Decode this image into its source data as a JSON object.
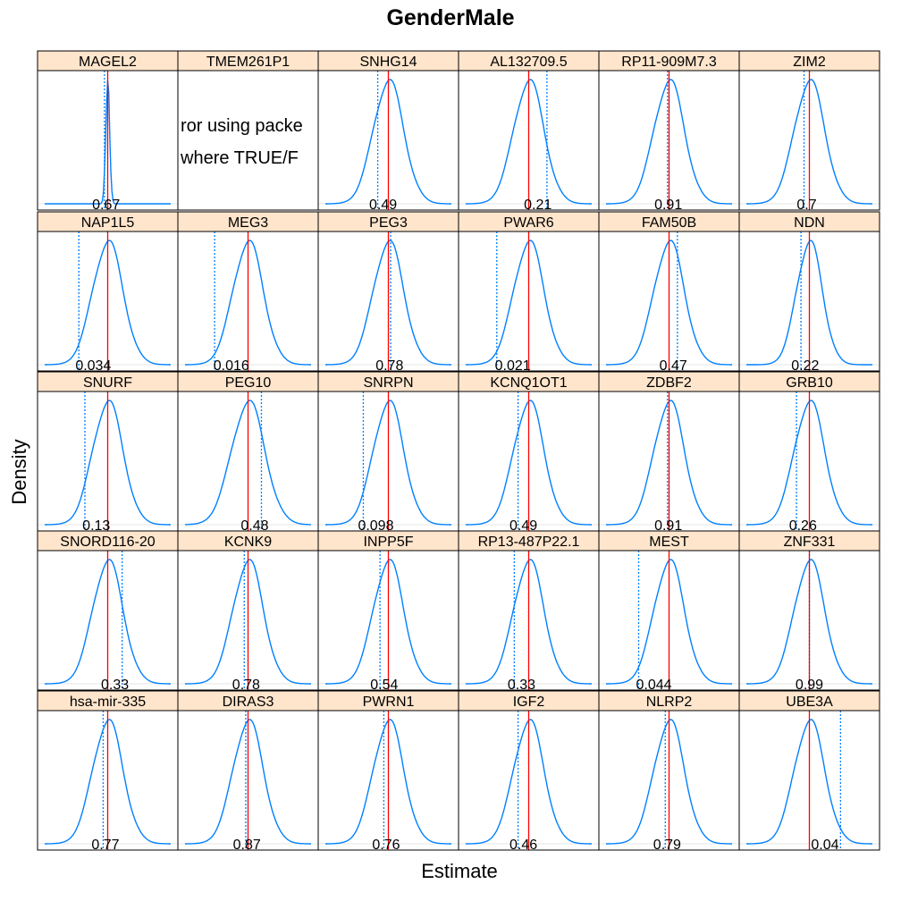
{
  "chart_data": {
    "type": "density",
    "title": "GenderMale",
    "xlabel": "Estimate",
    "ylabel": "Density",
    "layout": {
      "columns": 6,
      "rows": 5
    },
    "colors": {
      "density": "#0080ff",
      "estimate_line": "#ff0000",
      "zero_line": "#0080ff",
      "strip_bg": "#ffe5cc",
      "grid": "#e6e6e6"
    },
    "panels": [
      {
        "name": "MAGEL2",
        "p_value": "0.67",
        "estimate": 0.0,
        "zero": -0.02,
        "sd": 0.012
      },
      {
        "name": "TMEM261P1",
        "error_lines": [
          "ror using packe",
          "where TRUE/F"
        ]
      },
      {
        "name": "SNHG14",
        "p_value": "0.49",
        "estimate": 0.0,
        "zero": -0.7,
        "sd": 1.0
      },
      {
        "name": "AL132709.5",
        "p_value": "0.21",
        "estimate": 0.0,
        "zero": 1.2,
        "sd": 1.0
      },
      {
        "name": "RP11-909M7.3",
        "p_value": "0.91",
        "estimate": 0.0,
        "zero": -0.1,
        "sd": 1.0
      },
      {
        "name": "ZIM2",
        "p_value": "0.7",
        "estimate": 0.0,
        "zero": -0.35,
        "sd": 1.0
      },
      {
        "name": "NAP1L5",
        "p_value": "0.034",
        "estimate": 0.0,
        "zero": -1.9,
        "sd": 1.0
      },
      {
        "name": "MEG3",
        "p_value": "0.016",
        "estimate": 0.0,
        "zero": -2.2,
        "sd": 1.0
      },
      {
        "name": "PEG3",
        "p_value": "0.78",
        "estimate": 0.0,
        "zero": 0.15,
        "sd": 1.0
      },
      {
        "name": "PWAR6",
        "p_value": "0.021",
        "estimate": 0.0,
        "zero": -2.1,
        "sd": 1.0
      },
      {
        "name": "FAM50B",
        "p_value": "0.47",
        "estimate": 0.0,
        "zero": 0.55,
        "sd": 1.0
      },
      {
        "name": "NDN",
        "p_value": "0.22",
        "estimate": 0.0,
        "zero": -0.65,
        "sd": 0.85
      },
      {
        "name": "SNURF",
        "p_value": "0.13",
        "estimate": 0.0,
        "zero": -1.5,
        "sd": 1.0
      },
      {
        "name": "PEG10",
        "p_value": "0.48",
        "estimate": 0.0,
        "zero": 0.8,
        "sd": 1.1
      },
      {
        "name": "SNRPN",
        "p_value": "0.098",
        "estimate": 0.0,
        "zero": -1.65,
        "sd": 1.0
      },
      {
        "name": "KCNQ1OT1",
        "p_value": "0.49",
        "estimate": 0.0,
        "zero": -0.7,
        "sd": 1.0
      },
      {
        "name": "ZDBF2",
        "p_value": "0.91",
        "estimate": 0.0,
        "zero": -0.1,
        "sd": 1.0
      },
      {
        "name": "GRB10",
        "p_value": "0.26",
        "estimate": 0.0,
        "zero": -0.85,
        "sd": 1.0
      },
      {
        "name": "SNORD116-20",
        "p_value": "0.33",
        "estimate": 0.0,
        "zero": 0.95,
        "sd": 1.0
      },
      {
        "name": "KCNK9",
        "p_value": "0.78",
        "estimate": 0.0,
        "zero": -0.25,
        "sd": 1.0
      },
      {
        "name": "INPP5F",
        "p_value": "0.54",
        "estimate": 0.0,
        "zero": -0.55,
        "sd": 1.0
      },
      {
        "name": "RP13-487P22.1",
        "p_value": "0.33",
        "estimate": 0.0,
        "zero": -0.95,
        "sd": 1.0
      },
      {
        "name": "MEST",
        "p_value": "0.044",
        "estimate": 0.0,
        "zero": -2.0,
        "sd": 1.0
      },
      {
        "name": "ZNF331",
        "p_value": "0.99",
        "estimate": 0.0,
        "zero": 0.0,
        "sd": 1.0
      },
      {
        "name": "hsa-mir-335",
        "p_value": "0.77",
        "estimate": 0.0,
        "zero": -0.3,
        "sd": 1.0
      },
      {
        "name": "DIRAS3",
        "p_value": "0.87",
        "estimate": 0.0,
        "zero": -0.15,
        "sd": 1.0
      },
      {
        "name": "PWRN1",
        "p_value": "0.76",
        "estimate": 0.0,
        "zero": -0.3,
        "sd": 1.0
      },
      {
        "name": "IGF2",
        "p_value": "0.46",
        "estimate": 0.0,
        "zero": -0.7,
        "sd": 1.0
      },
      {
        "name": "NLRP2",
        "p_value": "0.79",
        "estimate": 0.0,
        "zero": -0.25,
        "sd": 1.0
      },
      {
        "name": "UBE3A",
        "p_value": "0.04",
        "estimate": 0.0,
        "zero": 2.05,
        "sd": 1.0
      }
    ]
  }
}
